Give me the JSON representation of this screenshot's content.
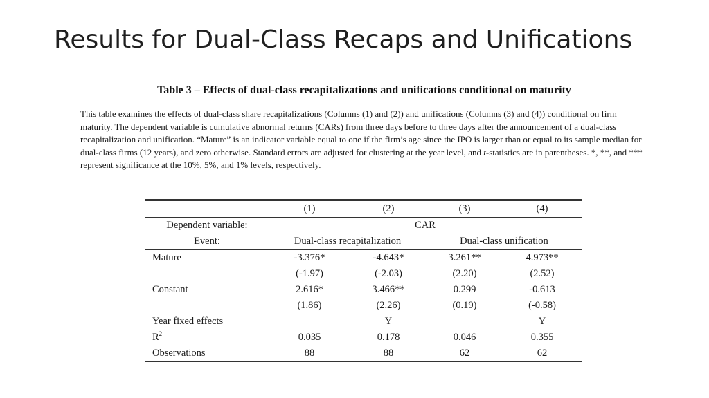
{
  "slide": {
    "title": "Results for Dual-Class Recaps and Unifications"
  },
  "table": {
    "title": "Table 3 – Effects of dual-class recapitalizations and unifications conditional on maturity",
    "caption_part1": "This table examines the effects of dual-class share recapitalizations (Columns (1) and (2)) and unifications (Columns (3) and (4)) conditional on firm maturity. The dependent variable is cumulative abnormal returns (CARs) from three days before to three days after the announcement of a dual-class recapitalization and unification. “Mature” is an indicator variable equal to one if the firm’s age since the IPO is larger than or equal to its sample median for dual-class firms (12 years), and zero otherwise. Standard errors are adjusted for clustering at the year level, and ",
    "caption_italic": "t",
    "caption_part2": "-statistics are in parentheses. *, **, and *** represent significance at the 10%, 5%, and 1% levels, respectively.",
    "column_numbers": [
      "(1)",
      "(2)",
      "(3)",
      "(4)"
    ],
    "dependent_variable_label": "Dependent variable:",
    "dependent_variable_value": "CAR",
    "event_label": "Event:",
    "event_recap": "Dual-class recapitalization",
    "event_unification": "Dual-class unification",
    "rows": {
      "mature": {
        "label": "Mature",
        "values": [
          "-3.376*",
          "-4.643*",
          "3.261**",
          "4.973**"
        ],
        "tstats": [
          "(-1.97)",
          "(-2.03)",
          "(2.20)",
          "(2.52)"
        ]
      },
      "constant": {
        "label": "Constant",
        "values": [
          "2.616*",
          "3.466**",
          "0.299",
          "-0.613"
        ],
        "tstats": [
          "(1.86)",
          "(2.26)",
          "(0.19)",
          "(-0.58)"
        ]
      },
      "year_fe": {
        "label": "Year fixed effects",
        "values": [
          "",
          "Y",
          "",
          "Y"
        ]
      },
      "r2": {
        "label": "R",
        "label_sup": "2",
        "values": [
          "0.035",
          "0.178",
          "0.046",
          "0.355"
        ]
      },
      "observations": {
        "label": "Observations",
        "values": [
          "88",
          "88",
          "62",
          "62"
        ]
      }
    }
  }
}
